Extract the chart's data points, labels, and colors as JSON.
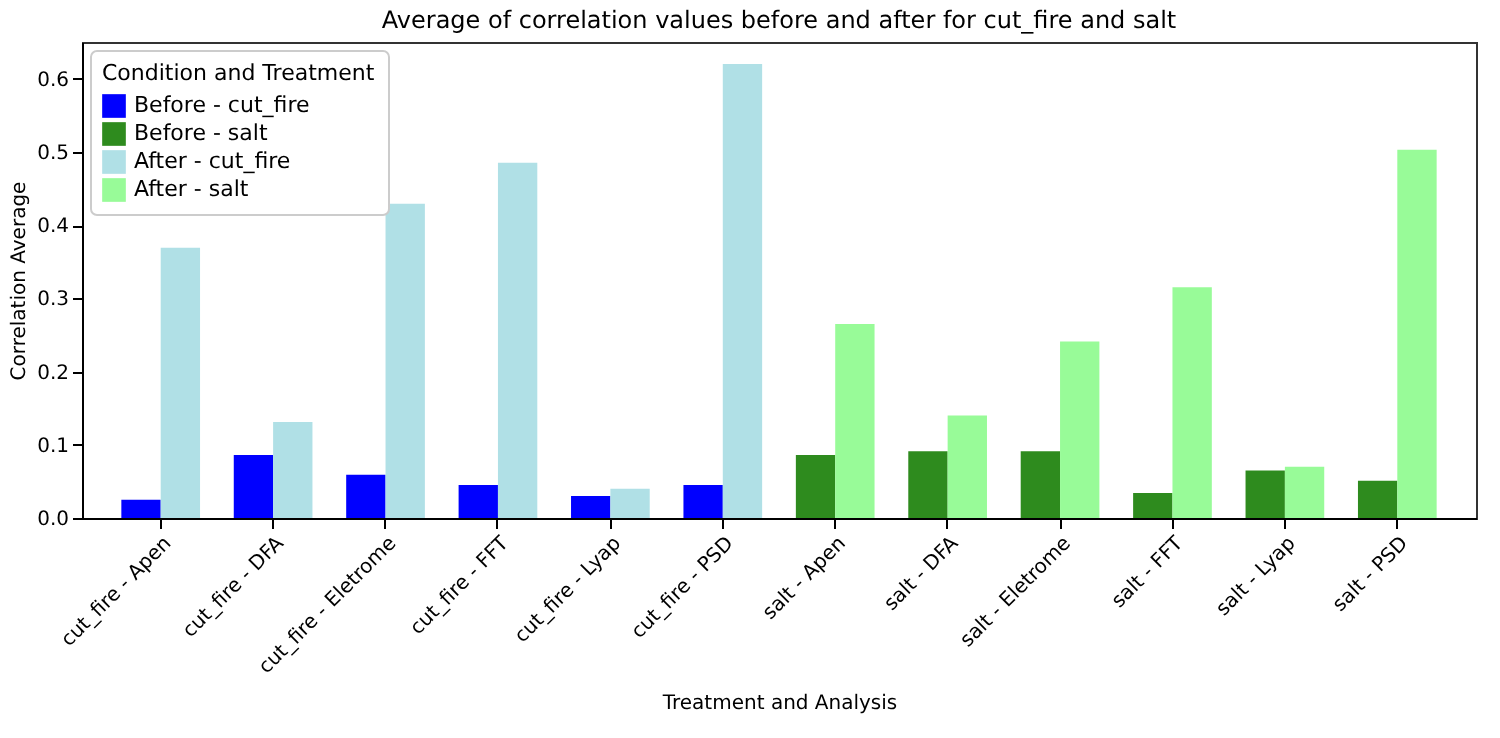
{
  "chart_data": {
    "type": "bar",
    "title": "Average of correlation values before and after for cut_fire and salt",
    "xlabel": "Treatment and Analysis",
    "ylabel": "Correlation Average",
    "legend_title": "Condition and Treatment",
    "categories": [
      "cut_fire - Apen",
      "cut_fire - DFA",
      "cut_fire - Eletrome",
      "cut_fire - FFT",
      "cut_fire - Lyap",
      "cut_fire - PSD",
      "salt - Apen",
      "salt - DFA",
      "salt - Eletrome",
      "salt - FFT",
      "salt - Lyap",
      "salt - PSD"
    ],
    "series": [
      {
        "name": "Before - cut_fire",
        "color": "#0000ff",
        "values": [
          0.025,
          0.086,
          0.059,
          0.045,
          0.03,
          0.045,
          null,
          null,
          null,
          null,
          null,
          null
        ]
      },
      {
        "name": "Before - salt",
        "color": "#2e8b1e",
        "values": [
          null,
          null,
          null,
          null,
          null,
          null,
          0.086,
          0.091,
          0.091,
          0.034,
          0.065,
          0.051
        ]
      },
      {
        "name": "After - cut_fire",
        "color": "#b0e0e6",
        "values": [
          0.369,
          0.131,
          0.429,
          0.485,
          0.04,
          0.62,
          null,
          null,
          null,
          null,
          null,
          null
        ]
      },
      {
        "name": "After - salt",
        "color": "#98fb98",
        "values": [
          null,
          null,
          null,
          null,
          null,
          null,
          0.265,
          0.14,
          0.241,
          0.315,
          0.07,
          0.503
        ]
      }
    ],
    "ylim": [
      0,
      0.65
    ],
    "yticks": [
      {
        "value": 0,
        "label": "0.0"
      },
      0.1,
      0.2,
      0.3,
      0.4,
      0.5,
      0.6
    ],
    "grid": false,
    "legend": "top left"
  }
}
